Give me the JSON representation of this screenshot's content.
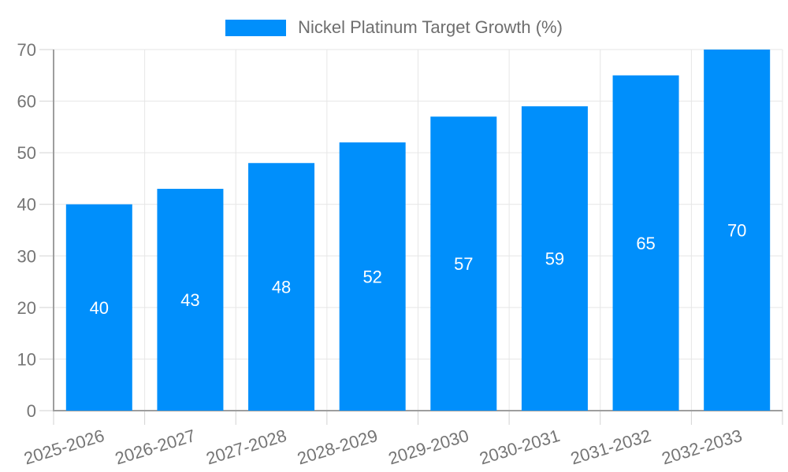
{
  "legend": {
    "series_label": "Nickel Platinum Target Growth (%)"
  },
  "colors": {
    "bar": "#008FFB",
    "grid": "#e6e6e6",
    "axis_line": "#9e9e9e",
    "tick": "#d2d2d2",
    "axis_text": "#757575",
    "legend_text": "#6e6e6e",
    "value_label": "#ffffff",
    "background": "#ffffff"
  },
  "chart_data": {
    "type": "bar",
    "title": "Nickel Platinum Target Growth (%)",
    "categories": [
      "2025-2026",
      "2026-2027",
      "2027-2028",
      "2028-2029",
      "2029-2030",
      "2030-2031",
      "2031-2032",
      "2032-2033"
    ],
    "values": [
      40,
      43,
      48,
      52,
      57,
      59,
      65,
      70
    ],
    "value_labels_position": "inside-center",
    "xlabel": "",
    "ylabel": "",
    "ylim": [
      0,
      70
    ],
    "ytick_interval": 10,
    "ytick_labels": [
      "0",
      "10",
      "20",
      "30",
      "40",
      "50",
      "60",
      "70"
    ],
    "grid": true,
    "legend_position": "top-center",
    "x_label_rotation_deg": -17
  }
}
